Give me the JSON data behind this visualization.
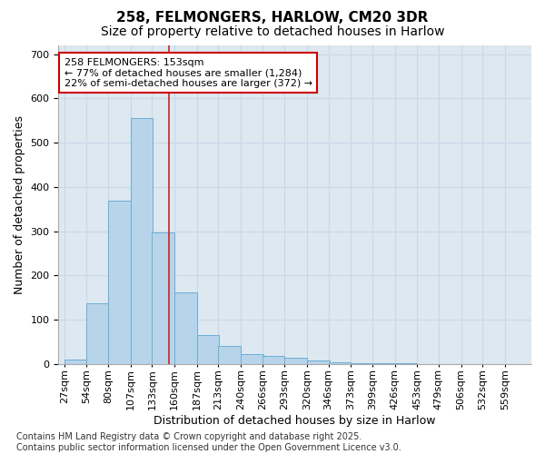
{
  "title_line1": "258, FELMONGERS, HARLOW, CM20 3DR",
  "title_line2": "Size of property relative to detached houses in Harlow",
  "xlabel": "Distribution of detached houses by size in Harlow",
  "ylabel": "Number of detached properties",
  "bin_labels": [
    "27sqm",
    "54sqm",
    "80sqm",
    "107sqm",
    "133sqm",
    "160sqm",
    "187sqm",
    "213sqm",
    "240sqm",
    "266sqm",
    "293sqm",
    "320sqm",
    "346sqm",
    "373sqm",
    "399sqm",
    "426sqm",
    "453sqm",
    "479sqm",
    "506sqm",
    "532sqm",
    "559sqm"
  ],
  "bin_edges": [
    27,
    54,
    80,
    107,
    133,
    160,
    187,
    213,
    240,
    266,
    293,
    320,
    346,
    373,
    399,
    426,
    453,
    479,
    506,
    532,
    559
  ],
  "bar_values": [
    10,
    138,
    368,
    555,
    297,
    162,
    65,
    40,
    22,
    18,
    13,
    8,
    4,
    2,
    1,
    1,
    0,
    0,
    0,
    0
  ],
  "bar_color": "#b8d4ea",
  "bar_edge_color": "#6baed6",
  "red_line_x": 153,
  "ylim": [
    0,
    720
  ],
  "yticks": [
    0,
    100,
    200,
    300,
    400,
    500,
    600,
    700
  ],
  "grid_color": "#c8d8ea",
  "background_color": "#dde8f0",
  "annotation_line1": "258 FELMONGERS: 153sqm",
  "annotation_line2": "← 77% of detached houses are smaller (1,284)",
  "annotation_line3": "22% of semi-detached houses are larger (372) →",
  "annotation_box_facecolor": "#ffffff",
  "annotation_box_edgecolor": "#cc0000",
  "footer_text": "Contains HM Land Registry data © Crown copyright and database right 2025.\nContains public sector information licensed under the Open Government Licence v3.0.",
  "title_fontsize": 11,
  "subtitle_fontsize": 10,
  "axis_label_fontsize": 9,
  "tick_fontsize": 8,
  "annotation_fontsize": 8,
  "footer_fontsize": 7
}
